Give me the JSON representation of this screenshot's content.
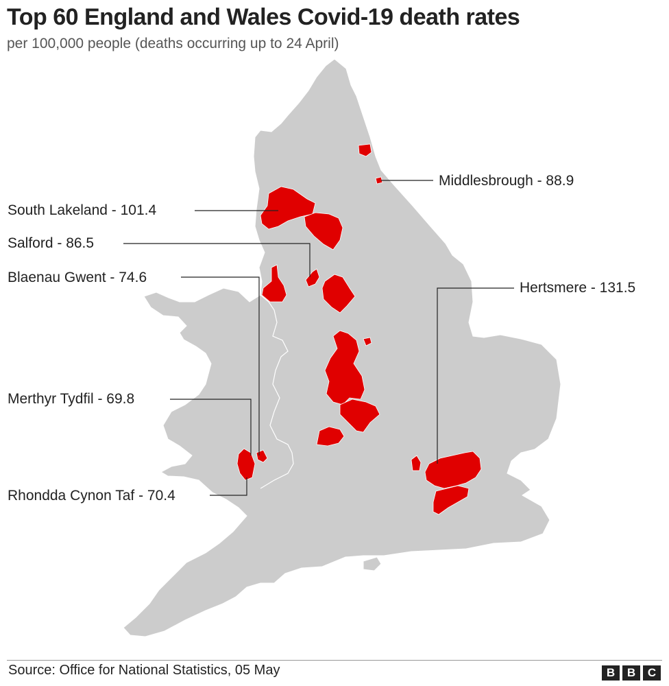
{
  "title": "Top 60 England and Wales Covid-19 death rates",
  "subtitle": "per 100,000 people (deaths occurring up to 24 April)",
  "labels": {
    "middlesbrough": "Middlesbrough - 88.9",
    "south_lakeland": "South Lakeland - 101.4",
    "salford": "Salford - 86.5",
    "blaenau_gwent": "Blaenau Gwent - 74.6",
    "hertsmere": "Hertsmere - 131.5",
    "merthyr_tydfil": "Merthyr Tydfil - 69.8",
    "rhondda_cynon_taf": "Rhondda Cynon Taf - 70.4"
  },
  "colors": {
    "land": "#cccccc",
    "highlight": "#e00000",
    "border": "#ffffff"
  },
  "source": "Source: Office for National Statistics, 05 May",
  "logo": [
    "B",
    "B",
    "C"
  ]
}
